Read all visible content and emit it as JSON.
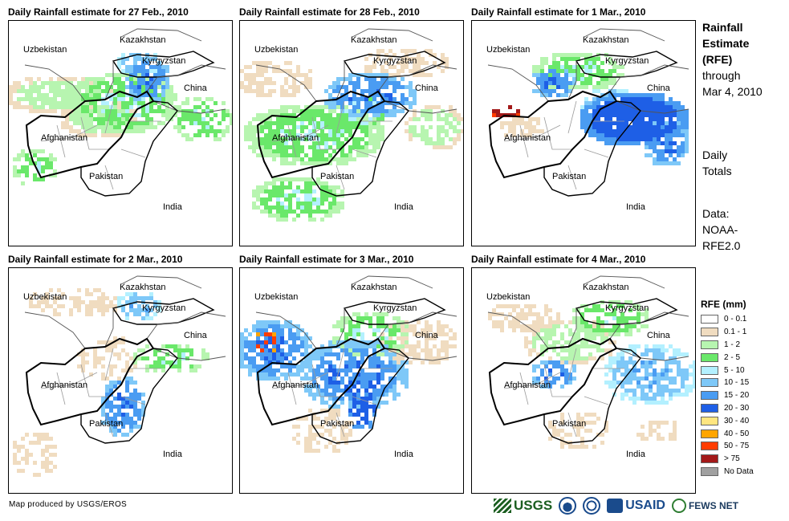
{
  "panels": [
    {
      "title": "Daily Rainfall estimate for 27 Feb., 2010",
      "intensity": "moderate-north"
    },
    {
      "title": "Daily Rainfall estimate for 28 Feb., 2010",
      "intensity": "moderate-wide"
    },
    {
      "title": "Daily Rainfall estimate for 1 Mar., 2010",
      "intensity": "heavy-east"
    },
    {
      "title": "Daily Rainfall estimate for 2 Mar., 2010",
      "intensity": "light"
    },
    {
      "title": "Daily Rainfall estimate for 3 Mar., 2010",
      "intensity": "moderate-west"
    },
    {
      "title": "Daily Rainfall estimate for 4 Mar., 2010",
      "intensity": "moderate-east"
    }
  ],
  "country_labels": {
    "kazakhstan": "Kazakhstan",
    "uzbekistan": "Uzbekistan",
    "kyrgyzstan": "Kyrgyzstan",
    "china": "China",
    "afghanistan": "Afghanistan",
    "pakistan": "Pakistan",
    "india": "India"
  },
  "side": {
    "title_lines": [
      "Rainfall",
      "Estimate",
      "(RFE)"
    ],
    "through": "through",
    "date": "Mar 4, 2010",
    "daily_lines": [
      "Daily",
      "Totals"
    ],
    "data_lines": [
      "Data:",
      "NOAA-",
      "RFE2.0"
    ]
  },
  "legend": {
    "title": "RFE (mm)",
    "items": [
      {
        "label": "0 - 0.1",
        "color": "#ffffff"
      },
      {
        "label": "0.1 - 1",
        "color": "#f0dcc0"
      },
      {
        "label": "1 - 2",
        "color": "#b7f5b0"
      },
      {
        "label": "2 - 5",
        "color": "#6ae86a"
      },
      {
        "label": "5 - 10",
        "color": "#b3f0ff"
      },
      {
        "label": "10 - 15",
        "color": "#7ec8f8"
      },
      {
        "label": "15 - 20",
        "color": "#4a9cf2"
      },
      {
        "label": "20 - 30",
        "color": "#1e5fe6"
      },
      {
        "label": "30 - 40",
        "color": "#ffe680"
      },
      {
        "label": "40 - 50",
        "color": "#ffa500"
      },
      {
        "label": "50 - 75",
        "color": "#ff3c00"
      },
      {
        "label": "> 75",
        "color": "#a31919"
      },
      {
        "label": "No Data",
        "color": "#a0a0a0"
      }
    ]
  },
  "credit": "Map produced by USGS/EROS",
  "logos": {
    "usgs": "USGS",
    "usaid": "USAID",
    "fews": "FEWS NET"
  }
}
